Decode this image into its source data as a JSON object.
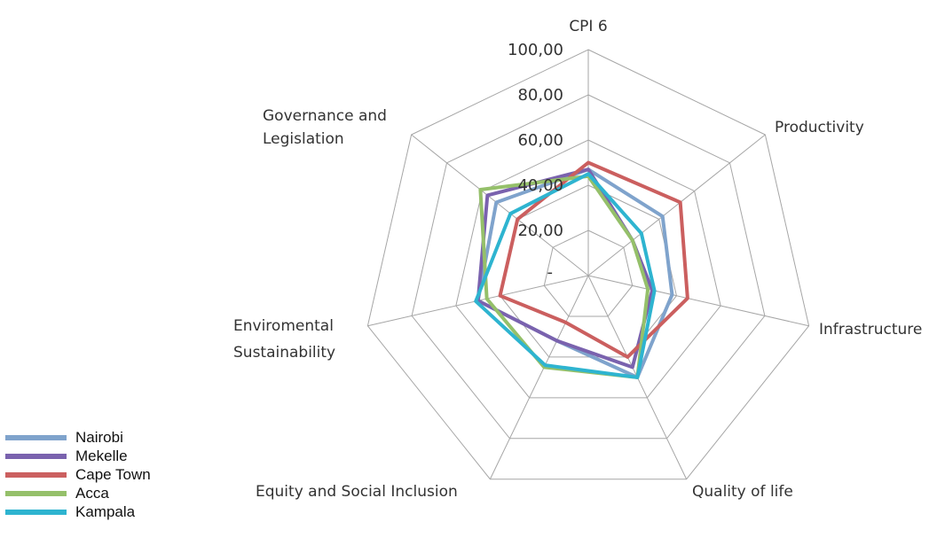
{
  "chart_data": {
    "type": "radar",
    "title": "",
    "axes": [
      "CPI 6",
      "Productivity",
      "Infrastructure",
      "Quality of life",
      "Equity and Social Inclusion",
      "Enviromental Sustainability",
      "Governance and Legislation"
    ],
    "axis_labels": {
      "cpi": "CPI 6",
      "productivity": "Productivity",
      "infrastructure": "Infrastructure",
      "quality": "Quality of life",
      "equity": "Equity and Social Inclusion",
      "env_line1": "Enviromental",
      "env_line2": "Sustainability",
      "gov_line1": "Governance and",
      "gov_line2": "Legislation"
    },
    "ticks": [
      "-",
      "20,00",
      "40,00",
      "60,00",
      "80,00",
      "100,00"
    ],
    "tick_values": [
      0,
      20,
      40,
      60,
      80,
      100
    ],
    "range": [
      0,
      100
    ],
    "series": [
      {
        "name": "Nairobi",
        "color": "#7fa3cc",
        "values": [
          47,
          42,
          38,
          50,
          32,
          50,
          52
        ]
      },
      {
        "name": "Mekelle",
        "color": "#7a62ae",
        "values": [
          47,
          25,
          29,
          45,
          32,
          50,
          57
        ]
      },
      {
        "name": "Cape Town",
        "color": "#cb5f5f",
        "values": [
          50,
          52,
          45,
          40,
          23,
          40,
          40
        ]
      },
      {
        "name": "Acca",
        "color": "#95c06a",
        "values": [
          44,
          25,
          27,
          50,
          45,
          46,
          61
        ]
      },
      {
        "name": "Kampala",
        "color": "#2eb4d0",
        "values": [
          45,
          30,
          30,
          50,
          44,
          51,
          44
        ]
      }
    ]
  }
}
